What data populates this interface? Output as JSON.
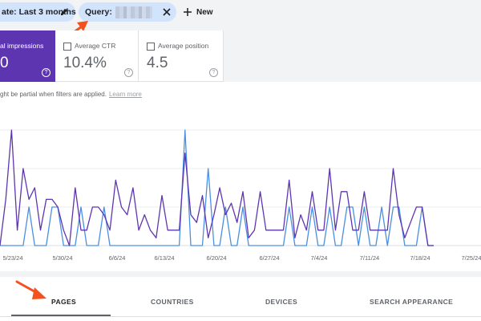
{
  "filters": {
    "date_chip": "ate: Last 3 months",
    "query_chip_label": "Query:",
    "new_label": "New"
  },
  "metrics": {
    "impressions": {
      "label": "al impressions",
      "value": "0"
    },
    "ctr": {
      "label": "Average CTR",
      "value": "10.4%"
    },
    "position": {
      "label": "Average position",
      "value": "4.5"
    }
  },
  "notice": {
    "text": "ght be partial when filters are applied.",
    "link": "Learn more"
  },
  "chart_data": {
    "type": "line",
    "x_tick_labels": [
      "5/23/24",
      "5/30/24",
      "6/6/24",
      "6/13/24",
      "6/20/24",
      "6/27/24",
      "7/4/24",
      "7/11/24",
      "7/18/24",
      "7/25/24"
    ],
    "series": [
      {
        "color": "#5e35b1",
        "values": [
          0,
          1.2,
          3,
          0.4,
          2,
          1.2,
          1.5,
          0.4,
          1.2,
          1.2,
          1,
          0.4,
          0,
          1.5,
          0.4,
          0.4,
          1,
          1,
          0.8,
          0.4,
          1.7,
          1,
          0.8,
          1.5,
          0.4,
          0.8,
          0.4,
          0.2,
          1.3,
          0.4,
          0.4,
          0.4,
          2.4,
          0.8,
          0.6,
          1.3,
          0.2,
          0.8,
          1.5,
          0.8,
          1.1,
          0.6,
          1.4,
          0.2,
          0.4,
          1.4,
          0.4,
          0.4,
          0.4,
          0.4,
          1.7,
          0.2,
          0.8,
          0.4,
          1.4,
          0.4,
          0.4,
          2,
          0.4,
          1.4,
          1.4,
          0.4,
          0.4,
          1.4,
          0.4,
          0.4,
          0.4,
          0.4,
          2,
          0.8,
          0.2,
          0.6,
          1,
          1,
          0,
          0
        ]
      },
      {
        "color": "#4a90e2",
        "values": [
          0,
          0,
          0,
          0,
          0,
          1,
          0,
          0,
          0,
          1,
          1,
          0,
          0,
          0,
          1,
          0,
          0,
          0,
          1,
          0,
          0,
          0,
          0,
          0,
          0,
          0,
          0,
          0,
          0,
          0,
          0,
          0,
          3,
          0,
          0,
          0,
          2,
          0,
          0,
          1,
          0,
          0,
          1,
          0,
          0,
          0,
          0,
          0,
          0,
          0,
          1,
          0,
          0,
          0,
          1,
          0,
          0,
          1,
          0,
          0,
          1,
          1,
          0,
          1,
          0,
          0,
          1,
          0,
          1,
          1,
          0,
          0,
          0,
          1,
          0,
          0
        ]
      }
    ]
  }
}
